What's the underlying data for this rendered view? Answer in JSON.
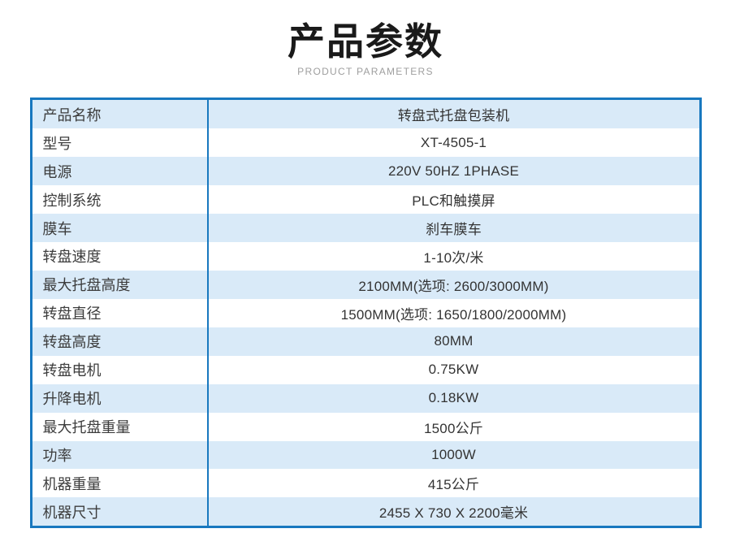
{
  "page": {
    "title": "产品参数",
    "subtitle": "PRODUCT PARAMETERS"
  },
  "colors": {
    "table_border": "#1878bf",
    "row_stripe": "#d9eaf8",
    "row_white": "#ffffff",
    "title_text": "#1a1a1a",
    "subtitle_text": "#9e9e9e",
    "label_text": "#3c3c3c",
    "value_text": "#333333"
  },
  "table": {
    "rows": [
      {
        "label": "产品名称",
        "value": "转盘式托盘包装机"
      },
      {
        "label": "型号",
        "value": "XT-4505-1"
      },
      {
        "label": "电源",
        "value": "220V 50HZ 1PHASE"
      },
      {
        "label": "控制系统",
        "value": "PLC和触摸屏"
      },
      {
        "label": "膜车",
        "value": "刹车膜车"
      },
      {
        "label": "转盘速度",
        "value": "1-10次/米"
      },
      {
        "label": "最大托盘高度",
        "value": "2100MM(选项: 2600/3000MM)"
      },
      {
        "label": "转盘直径",
        "value": "1500MM(选项: 1650/1800/2000MM)"
      },
      {
        "label": "转盘高度",
        "value": "80MM"
      },
      {
        "label": "转盘电机",
        "value": "0.75KW"
      },
      {
        "label": "升降电机",
        "value": "0.18KW"
      },
      {
        "label": "最大托盘重量",
        "value": "1500公斤"
      },
      {
        "label": "功率",
        "value": "1000W"
      },
      {
        "label": "机器重量",
        "value": "415公斤"
      },
      {
        "label": "机器尺寸",
        "value": "2455 X 730 X 2200毫米"
      }
    ]
  }
}
